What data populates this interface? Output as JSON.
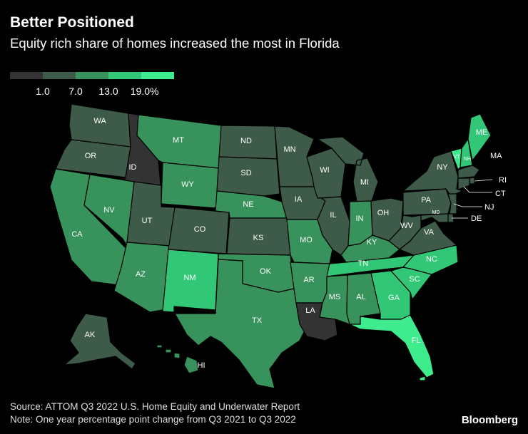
{
  "header": {
    "title": "Better Positioned",
    "subtitle": "Equity rich share of homes increased the most in Florida"
  },
  "legend": {
    "colors": [
      "#333333",
      "#3e5a48",
      "#38925b",
      "#32c776",
      "#3eec8e"
    ],
    "ticks": [
      "1.0",
      "7.0",
      "13.0",
      "19.0%"
    ]
  },
  "map": {
    "states": [
      {
        "code": "WA",
        "bin": 1
      },
      {
        "code": "OR",
        "bin": 1
      },
      {
        "code": "CA",
        "bin": 2
      },
      {
        "code": "ID",
        "bin": 0
      },
      {
        "code": "NV",
        "bin": 2
      },
      {
        "code": "UT",
        "bin": 1
      },
      {
        "code": "AZ",
        "bin": 2
      },
      {
        "code": "MT",
        "bin": 2
      },
      {
        "code": "WY",
        "bin": 2
      },
      {
        "code": "CO",
        "bin": 1
      },
      {
        "code": "NM",
        "bin": 3
      },
      {
        "code": "ND",
        "bin": 1
      },
      {
        "code": "SD",
        "bin": 1
      },
      {
        "code": "NE",
        "bin": 2
      },
      {
        "code": "KS",
        "bin": 1
      },
      {
        "code": "OK",
        "bin": 2
      },
      {
        "code": "TX",
        "bin": 2
      },
      {
        "code": "MN",
        "bin": 1
      },
      {
        "code": "IA",
        "bin": 1
      },
      {
        "code": "MO",
        "bin": 2
      },
      {
        "code": "AR",
        "bin": 2
      },
      {
        "code": "LA",
        "bin": 0
      },
      {
        "code": "WI",
        "bin": 1
      },
      {
        "code": "IL",
        "bin": 1
      },
      {
        "code": "MI",
        "bin": 1
      },
      {
        "code": "IN",
        "bin": 2
      },
      {
        "code": "OH",
        "bin": 1
      },
      {
        "code": "KY",
        "bin": 2
      },
      {
        "code": "TN",
        "bin": 3
      },
      {
        "code": "MS",
        "bin": 2
      },
      {
        "code": "AL",
        "bin": 2
      },
      {
        "code": "GA",
        "bin": 3
      },
      {
        "code": "FL",
        "bin": 4
      },
      {
        "code": "SC",
        "bin": 3
      },
      {
        "code": "NC",
        "bin": 3
      },
      {
        "code": "VA",
        "bin": 1
      },
      {
        "code": "WV",
        "bin": 1
      },
      {
        "code": "PA",
        "bin": 1
      },
      {
        "code": "NY",
        "bin": 1
      },
      {
        "code": "VT",
        "bin": 4
      },
      {
        "code": "NH",
        "bin": 3
      },
      {
        "code": "ME",
        "bin": 3
      },
      {
        "code": "MA",
        "bin": 1
      },
      {
        "code": "RI",
        "bin": 1
      },
      {
        "code": "CT",
        "bin": 1
      },
      {
        "code": "NJ",
        "bin": 1
      },
      {
        "code": "DE",
        "bin": 1
      },
      {
        "code": "MD",
        "bin": 1
      },
      {
        "code": "AK",
        "bin": 1
      },
      {
        "code": "HI",
        "bin": 2
      }
    ]
  },
  "footer": {
    "source": "Source: ATTOM Q3 2022 U.S. Home Equity and Underwater Report",
    "note": "Note: One year percentage point change from Q3 2021 to Q3 2022",
    "brand": "Bloomberg"
  }
}
